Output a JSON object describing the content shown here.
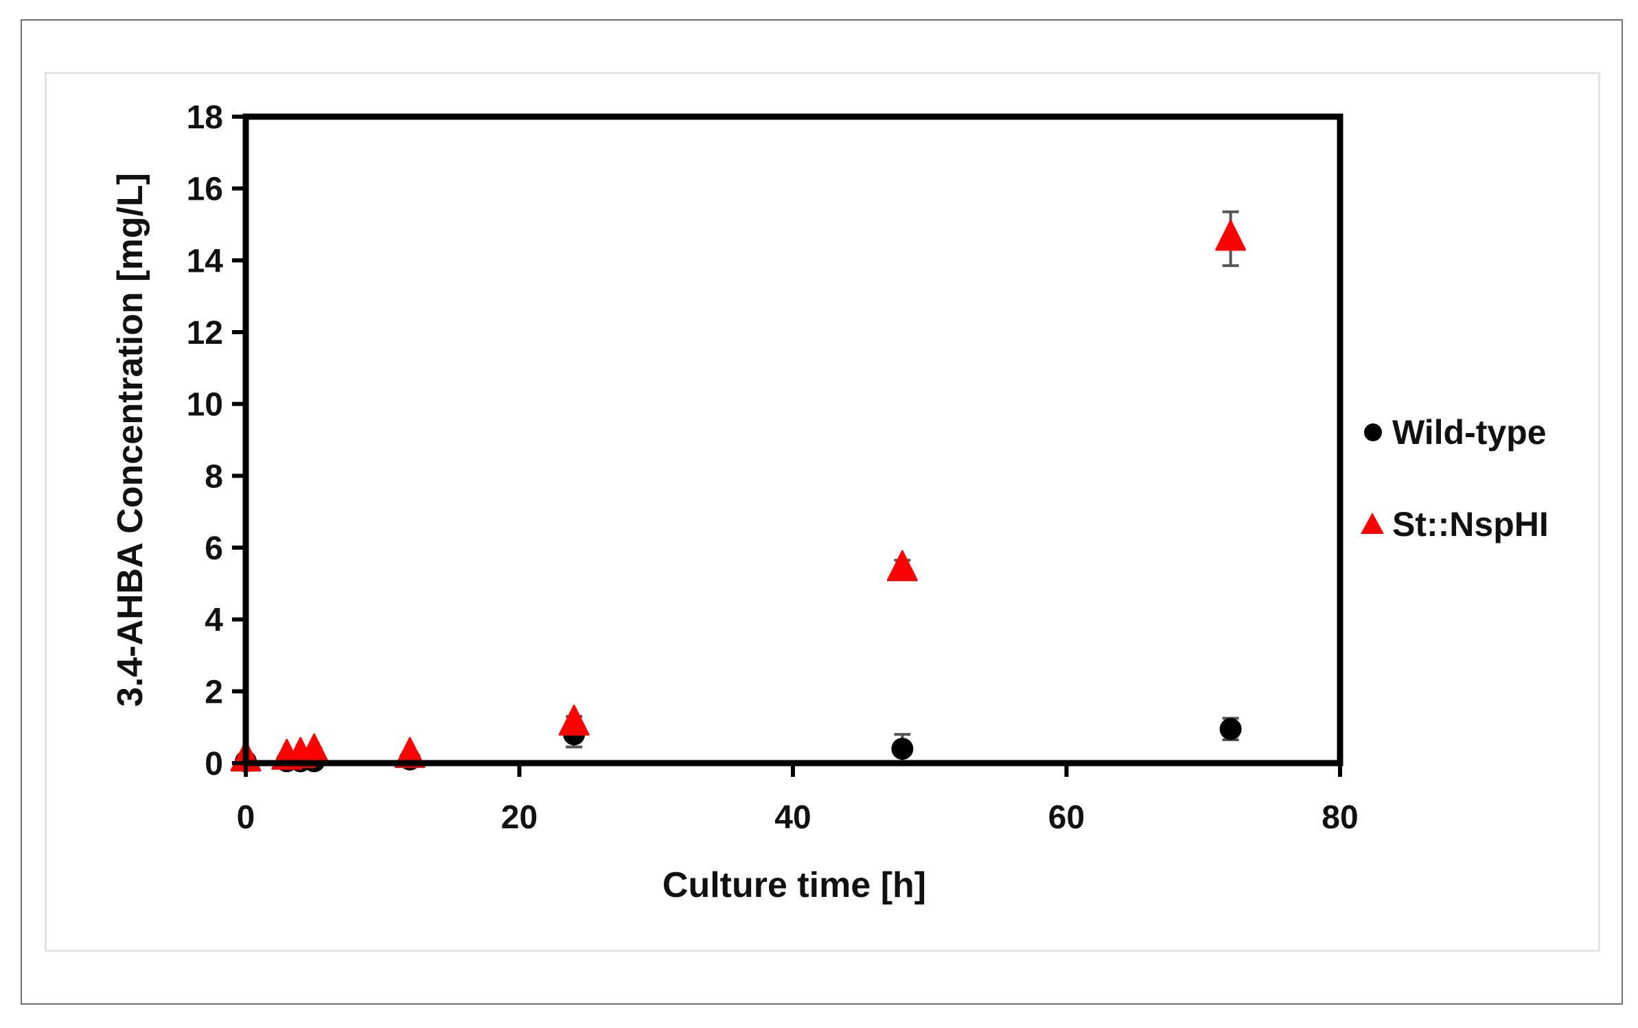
{
  "chart_data": {
    "type": "scatter",
    "title": "",
    "xlabel": "Culture time [h]",
    "ylabel": "3.4-AHBA Concentration [mg/L]",
    "xlim": [
      0,
      80
    ],
    "ylim": [
      0,
      18
    ],
    "xticks": [
      "0",
      "20",
      "40",
      "60",
      "80"
    ],
    "yticks": [
      "0",
      "2",
      "4",
      "6",
      "8",
      "10",
      "12",
      "14",
      "16",
      "18"
    ],
    "grid": false,
    "legend_position": "right",
    "error_bars": true,
    "series": [
      {
        "name": "Wild-type",
        "marker": "circle",
        "color": "#000000",
        "points": [
          {
            "x": 0,
            "y": 0.05,
            "err": 0.05
          },
          {
            "x": 3,
            "y": 0.05,
            "err": 0.05
          },
          {
            "x": 4,
            "y": 0.05,
            "err": 0.05
          },
          {
            "x": 5,
            "y": 0.05,
            "err": 0.05
          },
          {
            "x": 12,
            "y": 0.1,
            "err": 0.05
          },
          {
            "x": 24,
            "y": 0.8,
            "err": 0.35
          },
          {
            "x": 48,
            "y": 0.4,
            "err": 0.4
          },
          {
            "x": 72,
            "y": 0.95,
            "err": 0.3
          }
        ]
      },
      {
        "name": "St::NspHI",
        "marker": "triangle",
        "color": "#ff0000",
        "points": [
          {
            "x": 0,
            "y": 0.1,
            "err": 0.1
          },
          {
            "x": 3,
            "y": 0.15,
            "err": 0.1
          },
          {
            "x": 4,
            "y": 0.2,
            "err": 0.1
          },
          {
            "x": 5,
            "y": 0.3,
            "err": 0.1
          },
          {
            "x": 12,
            "y": 0.2,
            "err": 0.1
          },
          {
            "x": 24,
            "y": 1.1,
            "err": 0.2
          },
          {
            "x": 48,
            "y": 5.4,
            "err": 0.25
          },
          {
            "x": 72,
            "y": 14.6,
            "err": 0.75
          }
        ]
      }
    ]
  }
}
